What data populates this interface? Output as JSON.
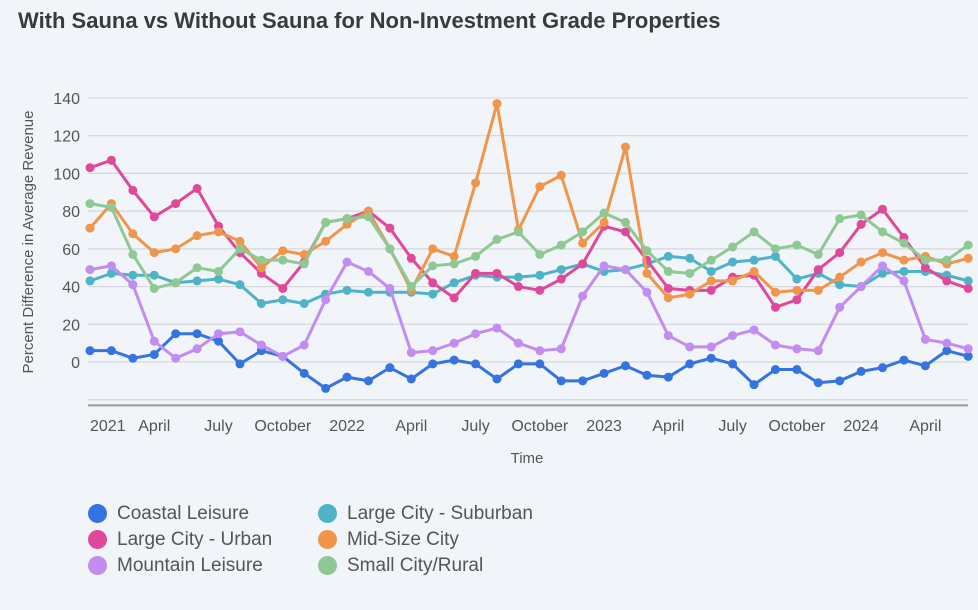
{
  "chart_data": {
    "type": "line",
    "title": "With Sauna vs Without Sauna for Non-Investment Grade Properties",
    "xlabel": "Time",
    "ylabel": "Percent Difference in Average Revenue",
    "ylim": [
      -23,
      140
    ],
    "yticks": [
      0,
      20,
      40,
      60,
      80,
      100,
      120,
      140
    ],
    "grid": true,
    "legend_position": "bottom",
    "x_start": "2021-01",
    "x_frequency": "monthly",
    "x_count": 42,
    "xtick_labels": [
      {
        "label": "2021",
        "index": 0
      },
      {
        "label": "April",
        "index": 3
      },
      {
        "label": "July",
        "index": 6
      },
      {
        "label": "October",
        "index": 9
      },
      {
        "label": "2022",
        "index": 12
      },
      {
        "label": "April",
        "index": 15
      },
      {
        "label": "July",
        "index": 18
      },
      {
        "label": "October",
        "index": 21
      },
      {
        "label": "2023",
        "index": 24
      },
      {
        "label": "April",
        "index": 27
      },
      {
        "label": "July",
        "index": 30
      },
      {
        "label": "October",
        "index": 33
      },
      {
        "label": "2024",
        "index": 36
      },
      {
        "label": "April",
        "index": 39
      }
    ],
    "series": [
      {
        "name": "Coastal Leisure",
        "color": "#3574e0",
        "values": [
          6,
          6,
          2,
          4,
          15,
          15,
          11,
          -1,
          6,
          3,
          -6,
          -14,
          -8,
          -10,
          -3,
          -9,
          -1,
          1,
          -1,
          -9,
          -1,
          -1,
          -10,
          -10,
          -6,
          -2,
          -7,
          -8,
          -1,
          2,
          -1,
          -12,
          -4,
          -4,
          -11,
          -10,
          -5,
          -3,
          1,
          -2,
          6,
          3
        ]
      },
      {
        "name": "Large City - Suburban",
        "color": "#4fb3c8",
        "values": [
          43,
          47,
          46,
          46,
          42,
          43,
          44,
          41,
          31,
          33,
          31,
          36,
          38,
          37,
          37,
          37,
          36,
          42,
          46,
          45,
          45,
          46,
          49,
          52,
          48,
          49,
          52,
          56,
          55,
          48,
          53,
          54,
          56,
          44,
          47,
          41,
          40,
          47,
          48,
          48,
          46,
          43
        ]
      },
      {
        "name": "Large City - Urban",
        "color": "#e0489a",
        "values": [
          103,
          107,
          91,
          77,
          84,
          92,
          72,
          58,
          47,
          39,
          53,
          74,
          76,
          80,
          71,
          55,
          42,
          34,
          47,
          47,
          40,
          38,
          44,
          52,
          72,
          69,
          54,
          39,
          38,
          38,
          45,
          46,
          29,
          33,
          49,
          58,
          73,
          81,
          66,
          50,
          43,
          39
        ]
      },
      {
        "name": "Mid-Size City",
        "color": "#f0954a",
        "values": [
          71,
          84,
          68,
          58,
          60,
          67,
          69,
          64,
          50,
          59,
          57,
          64,
          73,
          80,
          60,
          38,
          60,
          56,
          95,
          137,
          70,
          93,
          99,
          63,
          74,
          114,
          47,
          34,
          36,
          43,
          43,
          48,
          37,
          38,
          38,
          45,
          53,
          58,
          54,
          56,
          52,
          55
        ]
      },
      {
        "name": "Mountain Leisure",
        "color": "#c28cf0",
        "values": [
          49,
          51,
          41,
          11,
          2,
          7,
          15,
          16,
          9,
          3,
          9,
          33,
          53,
          48,
          39,
          5,
          6,
          10,
          15,
          18,
          10,
          6,
          7,
          35,
          51,
          49,
          37,
          14,
          8,
          8,
          14,
          17,
          9,
          7,
          6,
          29,
          40,
          51,
          43,
          12,
          10,
          7
        ]
      },
      {
        "name": "Small City/Rural",
        "color": "#8ec994",
        "values": [
          84,
          82,
          57,
          39,
          42,
          50,
          48,
          60,
          54,
          54,
          52,
          74,
          76,
          77,
          60,
          40,
          51,
          52,
          56,
          65,
          69,
          57,
          62,
          69,
          79,
          74,
          59,
          48,
          47,
          54,
          61,
          69,
          60,
          62,
          57,
          76,
          78,
          69,
          63,
          54,
          54,
          62
        ]
      }
    ]
  }
}
